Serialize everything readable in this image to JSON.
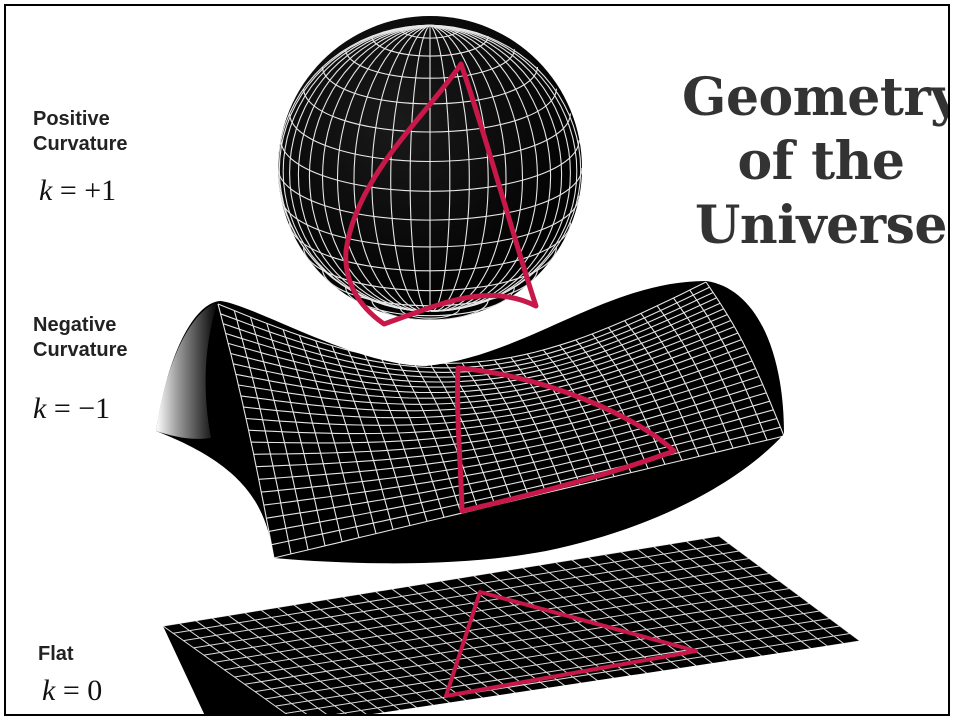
{
  "title": {
    "line1": "Geometry",
    "line2": "of the",
    "line3": "Universe"
  },
  "shapes": [
    {
      "label_line1": "Positive",
      "label_line2": "Curvature",
      "variable": "k",
      "operator": "=",
      "value": "+1"
    },
    {
      "label_line1": "Negative",
      "label_line2": "Curvature",
      "variable": "k",
      "operator": "=",
      "value": "−1"
    },
    {
      "label_line1": "Flat",
      "label_line2": "",
      "variable": "k",
      "operator": "=",
      "value": "0"
    }
  ],
  "colors": {
    "surface": "#000000",
    "grid": "#ffffff",
    "triangle": "#c8184a",
    "title": "#333333",
    "frame": "#000000"
  }
}
